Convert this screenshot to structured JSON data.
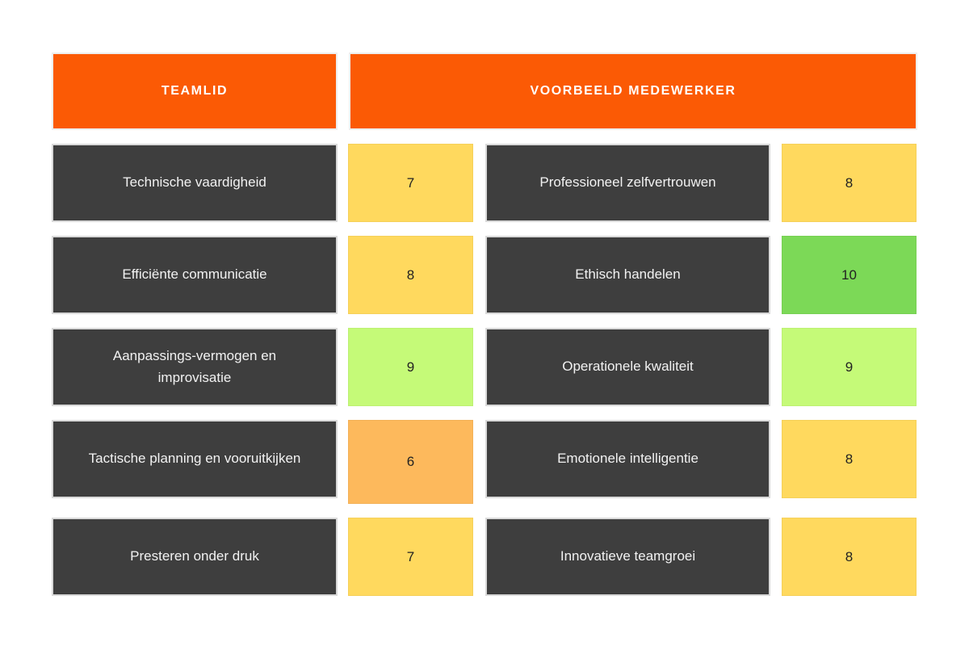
{
  "table": {
    "headers": [
      {
        "label": "TEAMLID"
      },
      {
        "label": "VOORBEELD MEDEWERKER"
      }
    ],
    "rows": [
      {
        "left": {
          "label": "Technische vaardigheid",
          "score": "7",
          "color": "#FFD95E"
        },
        "right": {
          "label": "Professioneel zelfvertrouwen",
          "score": "8",
          "color": "#FFD95E"
        }
      },
      {
        "left": {
          "label": "Efficiënte communicatie",
          "score": "8",
          "color": "#FFD95E"
        },
        "right": {
          "label": "Ethisch handelen",
          "score": "10",
          "color": "#7CD957"
        }
      },
      {
        "left": {
          "label": "Aanpassings-vermogen en improvisatie",
          "score": "9",
          "color": "#C5FA78"
        },
        "right": {
          "label": "Operationele kwaliteit",
          "score": "9",
          "color": "#C5FA78"
        }
      },
      {
        "left": {
          "label": "Tactische planning en vooruitkijken",
          "score": "6",
          "color": "#FDB95C"
        },
        "right": {
          "label": "Emotionele intelligentie",
          "score": "8",
          "color": "#FFD95E"
        }
      },
      {
        "left": {
          "label": "Presteren onder druk",
          "score": "7",
          "color": "#FFD95E"
        },
        "right": {
          "label": "Innovatieve teamgroei",
          "score": "8",
          "color": "#FFD95E"
        }
      }
    ]
  },
  "colors": {
    "header_bg": "#FB5A05",
    "label_bg": "#3E3E3E",
    "score_low_orange": "#FDB95C",
    "score_mid_yellow": "#FFD95E",
    "score_high_lime": "#C5FA78",
    "score_max_green": "#7CD957"
  }
}
